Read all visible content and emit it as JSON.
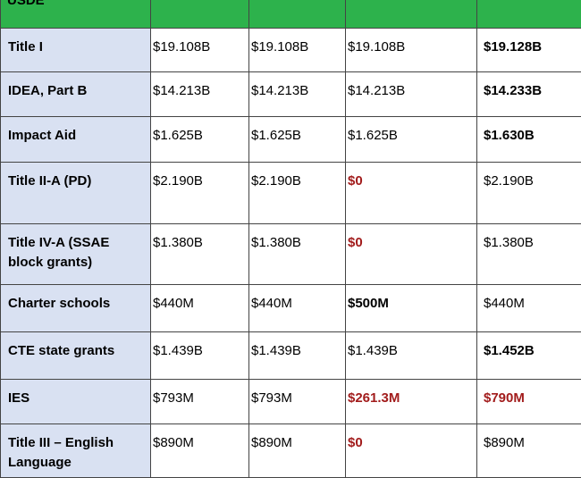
{
  "header": {
    "label": "USDE"
  },
  "rows": [
    {
      "label": "Title I",
      "c1": "$19.108B",
      "c2": "$19.108B",
      "c3": "$19.108B",
      "c4": "$19.128B"
    },
    {
      "label": "IDEA, Part B",
      "c1": "$14.213B",
      "c2": "$14.213B",
      "c3": "$14.213B",
      "c4": "$14.233B"
    },
    {
      "label": "Impact Aid",
      "c1": "$1.625B",
      "c2": "$1.625B",
      "c3": "$1.625B",
      "c4": "$1.630B"
    },
    {
      "label": "Title II-A (PD)",
      "c1": "$2.190B",
      "c2": "$2.190B",
      "c3": "$0",
      "c4": "$2.190B"
    },
    {
      "label": "Title IV-A (SSAE block grants)",
      "c1": "$1.380B",
      "c2": "$1.380B",
      "c3": "$0",
      "c4": "$1.380B"
    },
    {
      "label": "Charter schools",
      "c1": "$440M",
      "c2": "$440M",
      "c3": "$500M",
      "c4": "$440M"
    },
    {
      "label": "CTE state grants",
      "c1": "$1.439B",
      "c2": "$1.439B",
      "c3": "$1.439B",
      "c4": "$1.452B"
    },
    {
      "label": "IES",
      "c1": "$793M",
      "c2": "$793M",
      "c3": "$261.3M",
      "c4": "$790M"
    },
    {
      "label": "Title III – English Language",
      "c1": "$890M",
      "c2": "$890M",
      "c3": "$0",
      "c4": "$890M"
    }
  ],
  "colors": {
    "header_green": "#2db24c",
    "label_blue": "#d9e1f2",
    "highlight_red": "#a21c1c"
  }
}
